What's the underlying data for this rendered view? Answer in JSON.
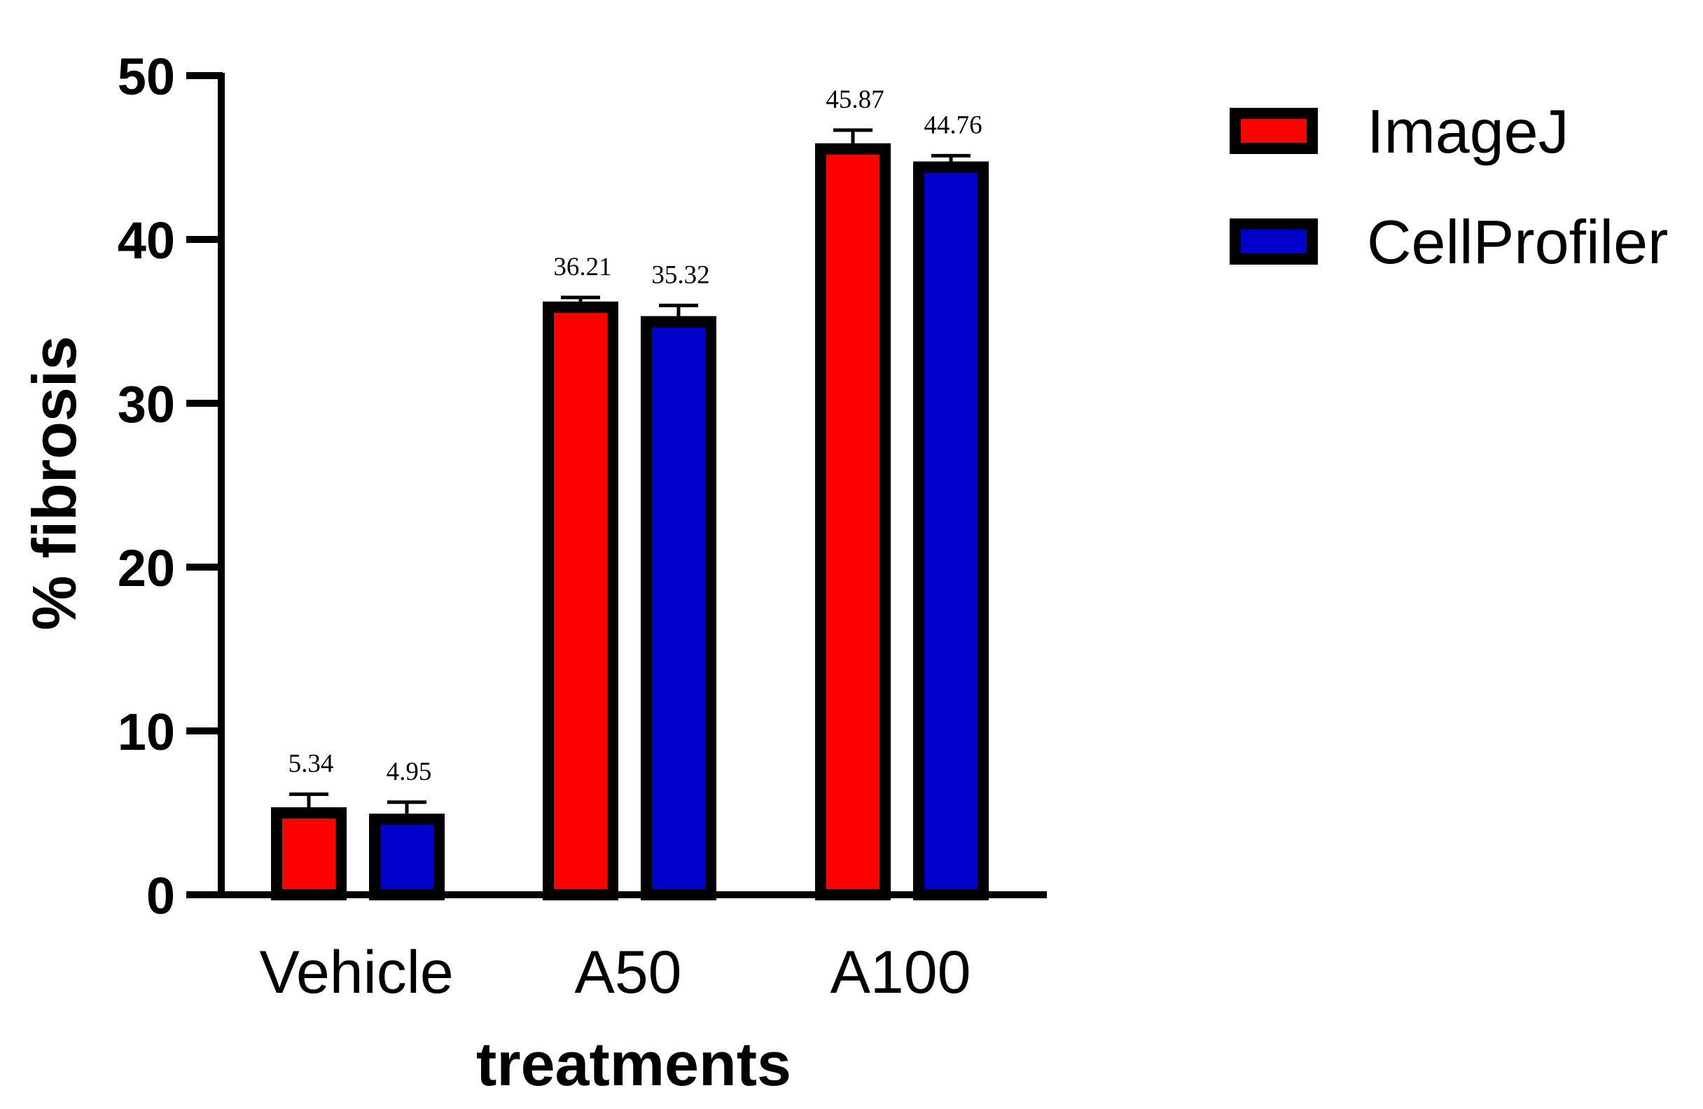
{
  "chart_data": {
    "type": "bar",
    "title": "",
    "xlabel": "treatments",
    "ylabel": "% fibrosis",
    "ylim": [
      0,
      50
    ],
    "yticks": [
      0,
      10,
      20,
      30,
      40,
      50
    ],
    "categories": [
      "Vehicle",
      "A50",
      "A100"
    ],
    "series": [
      {
        "name": "ImageJ",
        "color": "#ff0000",
        "values": [
          5.34,
          36.21,
          45.87
        ],
        "errors": [
          0.8,
          0.25,
          0.8
        ],
        "labels": [
          "5.34",
          "36.21",
          "45.87"
        ]
      },
      {
        "name": "CellProfiler",
        "color": "#0000cc",
        "values": [
          4.95,
          35.32,
          44.76
        ],
        "errors": [
          0.7,
          0.65,
          0.35
        ],
        "labels": [
          "4.95",
          "35.32",
          "44.76"
        ]
      }
    ],
    "legend_position": "top-right",
    "grid": false
  }
}
